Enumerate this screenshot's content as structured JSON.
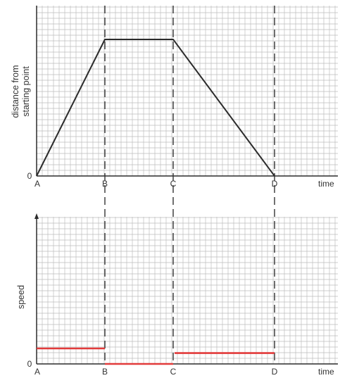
{
  "colors": {
    "grid": "#bdbdbd",
    "axis": "#2b2b2b",
    "distance_line": "#2b2b2b",
    "speed_line": "#e23b3b",
    "guide": "#333333"
  },
  "chart_data": [
    {
      "type": "line",
      "ylabel_line1": "distance from",
      "ylabel_line2": "starting point",
      "xlabel": "time",
      "y_zero_label": "0",
      "categories": [
        "A",
        "B",
        "C",
        "D"
      ],
      "series": [
        {
          "x": [
            "A",
            "B",
            "C",
            "D"
          ],
          "y": [
            0,
            1,
            1,
            0
          ]
        }
      ],
      "grid": true
    },
    {
      "type": "line",
      "ylabel": "speed",
      "xlabel": "time",
      "y_zero_label": "0",
      "categories": [
        "A",
        "B",
        "C",
        "D"
      ],
      "segments": [
        {
          "from": "A",
          "to": "B",
          "speed": 0.1
        },
        {
          "from": "B",
          "to": "C",
          "speed": 0
        },
        {
          "from": "C",
          "to": "D",
          "speed": 0.07
        }
      ],
      "grid": true
    }
  ]
}
